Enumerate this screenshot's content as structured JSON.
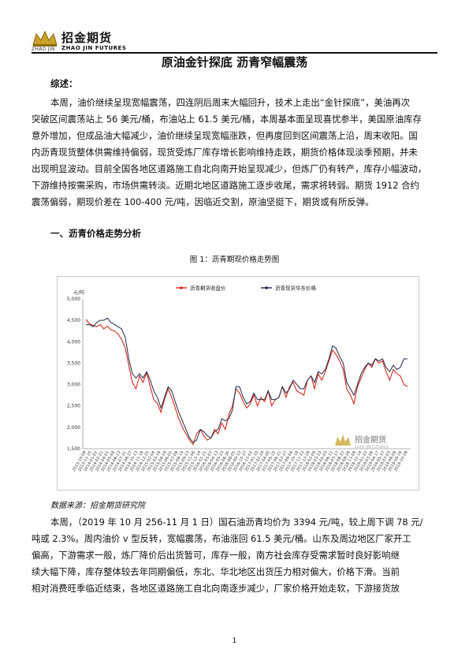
{
  "header": {
    "company_cn": "招金期货",
    "company_pinyin": "ZHAO JIN",
    "company_en": "ZHAO JIN FUTURES"
  },
  "title": "原油金针探底 沥青窄幅震荡",
  "summary": {
    "heading": "综述：",
    "lines": [
      "本周，油价继续呈现宽幅震荡，四连阴后周末大幅回升，技术上走出“金针探底”，美油再次",
      "突破区间震荡站上 56 美元/桶，布油站上 61.5 美元/桶，本周基本面呈现喜忧参半，美国原油库存",
      "意外增加，但成品油大幅减少，油价继续呈现宽幅涨跌，但再度回到区间震荡上沿，周末收阳。国",
      "内沥青现货整体供需维持偏弱，现货受炼厂库存增长影响维持走跌，期货价格体现淡季预期，并未",
      "出现明显波动。目前全国各地区道路施工自北向南开始呈现减少，但炼厂仍有转产，库存小幅波动，",
      "下游维持按需采购，市场供需转淡。近期北地区道路施工逐步收尾，需求将转弱。期货 1912 合约",
      "震荡偏弱，期现价差在 100-400 元/吨，因临近交割，原油坚挺下，期货或有所反弹。"
    ]
  },
  "section1": {
    "heading": "一、沥青价格走势分析"
  },
  "figure1": {
    "caption": "图 1：沥青期现价格走势图",
    "source": "数据来源：招金期货研究院",
    "watermark_cn": "招金期货",
    "watermark_en": "ZHAO JIN FUTURES"
  },
  "body": {
    "lines": [
      "本周，（2019 年 10 月 256-11 月 1 日）国石油沥青均价为 3394 元/吨，较上周下调 78 元/",
      "吨或 2.3%。周内油价 v 型反转，宽幅震荡，布油涨回 61.5 美元/桶。山东及周边地区厂家开工",
      "偏高，下游需求一般，炼厂降价后出货暂可，库存一般，南方社会库存受需求暂时良好影响继",
      "续大幅下降，库存整体较去年同期偏低，东北、华北地区出货压力相对偏大，价格下滑。当前",
      "相对消费旺季临近结束，各地区道路施工自北向南逐步减少，厂家价格开始走软，下游接货放"
    ]
  },
  "page_number": "1",
  "colors": {
    "futures": "#d42a20",
    "spot": "#1f2a44",
    "logo_gold": "#c9a227"
  },
  "chart_data": {
    "type": "line",
    "ylabel": "元/吨",
    "ylim": [
      1500,
      5000
    ],
    "yticks": [
      "1,500",
      "2,000",
      "2,500",
      "3,000",
      "3,500",
      "4,000",
      "4,500",
      "5,000"
    ],
    "x_tick_labels": [
      "2013-10-09",
      "2013-11-25",
      "2014-01-02",
      "2014-02-21",
      "2014-04-01",
      "2014-05-08",
      "2014-06-13",
      "2014-07-21",
      "2014-08-27",
      "2014-10-13",
      "2014-11-18",
      "2014-12-25",
      "2015-02-04",
      "2015-03-18",
      "2015-04-24",
      "2015-06-02",
      "2015-07-08",
      "2015-08-14",
      "2015-09-23",
      "2015-11-06",
      "2015-12-14",
      "2016-01-21",
      "2016-03-07",
      "2016-04-13",
      "2016-05-23",
      "2016-06-30",
      "2016-08-05",
      "2016-09-13",
      "2016-10-27",
      "2016-12-02",
      "2017-01-10",
      "2017-02-24",
      "2017-04-05",
      "2017-05-15",
      "2017-06-21",
      "2017-07-27",
      "2017-09-04",
      "2017-10-18",
      "2017-11-23",
      "2017-12-29",
      "2018-02-09",
      "2018-03-23",
      "2018-05-03",
      "2018-06-11",
      "2018-07-17",
      "2018-08-22",
      "2018-09-28",
      "2018-11-08",
      "2018-12-14",
      "2019-01-22",
      "2019-03-08",
      "2019-04-17",
      "2019-05-27",
      "2019-07-03",
      "2019-08-08",
      "2019-09-16",
      "2019-10-28"
    ],
    "series": [
      {
        "name": "沥青期货收盘价",
        "values": [
          4520,
          4420,
          4380,
          4350,
          4400,
          4300,
          4360,
          4280,
          4250,
          4180,
          4050,
          3850,
          3450,
          3050,
          2900,
          3200,
          3050,
          3280,
          2950,
          2650,
          2550,
          2350,
          2650,
          2900,
          2700,
          2450,
          2200,
          2000,
          1850,
          1700,
          1600,
          1850,
          1950,
          1800,
          1700,
          1750,
          1950,
          1850,
          2100,
          1950,
          2300,
          2500,
          2900,
          2800,
          2600,
          2450,
          2550,
          2750,
          2500,
          2700,
          2600,
          2850,
          2500,
          2650,
          2700,
          2950,
          2700,
          2950,
          3050,
          2850,
          2800,
          2750,
          3100,
          3200,
          2900,
          3250,
          3100,
          3300,
          3550,
          3800,
          3700,
          3550,
          3350,
          2900,
          2750,
          2550,
          2950,
          3150,
          3350,
          3500,
          3400,
          3600,
          3500,
          3550,
          3300,
          3100,
          3350,
          3250,
          3200,
          3000,
          2950
        ]
      },
      {
        "name": "沥青现货华东价格",
        "values": [
          4400,
          4400,
          4350,
          4450,
          4500,
          4500,
          4550,
          4450,
          4400,
          4350,
          4300,
          4100,
          3600,
          3250,
          3150,
          3250,
          3150,
          3300,
          3100,
          2850,
          2700,
          2450,
          2700,
          2950,
          2850,
          2600,
          2350,
          2150,
          1950,
          1750,
          1650,
          1700,
          1950,
          1900,
          1800,
          1750,
          1900,
          1950,
          2200,
          2150,
          2200,
          2400,
          2950,
          2950,
          2700,
          2550,
          2600,
          2800,
          2650,
          2650,
          2650,
          2850,
          2650,
          2650,
          2700,
          2950,
          2800,
          2900,
          3100,
          3000,
          2900,
          2900,
          3100,
          3200,
          3050,
          3300,
          3250,
          3350,
          3600,
          3900,
          3850,
          3650,
          3500,
          3050,
          2900,
          2750,
          3000,
          3250,
          3400,
          3500,
          3450,
          3600,
          3550,
          3600,
          3400,
          3300,
          3450,
          3350,
          3400,
          3600,
          3600
        ]
      }
    ],
    "legend_position": "top-center",
    "grid": false
  }
}
